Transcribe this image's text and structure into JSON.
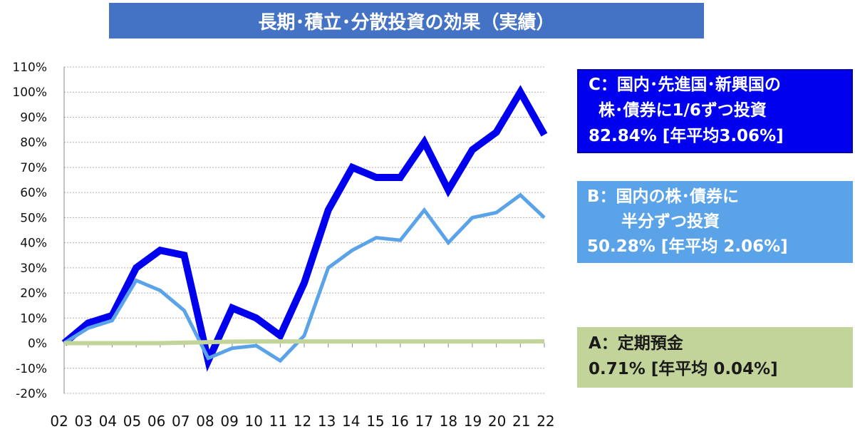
{
  "title": "長期･積立･分散投資の効果（実績）",
  "legend_boxes": {
    "c": {
      "line1": "C：国内･先進国･新興国の",
      "line2": "株･債券に1/6ずつ投資",
      "line3": "82.84%  [年平均3.06%]"
    },
    "b": {
      "line1": "B：国内の株･債券に",
      "line2": "半分ずつ投資",
      "line3": "50.28% [年平均 2.06%]"
    },
    "a": {
      "line1": "A：定期預金",
      "line2": "0.71%  [年平均 0.04%]"
    }
  },
  "colors": {
    "series_c": "#0000ee",
    "series_b": "#5ba3e8",
    "series_a": "#c3d49b",
    "title_bg": "#4472c4"
  },
  "chart_data": {
    "type": "line",
    "title": "長期･積立･分散投資の効果（実績）",
    "categories": [
      "02",
      "03",
      "04",
      "05",
      "06",
      "07",
      "08",
      "09",
      "10",
      "11",
      "12",
      "13",
      "14",
      "15",
      "16",
      "17",
      "18",
      "19",
      "20",
      "21",
      "22"
    ],
    "y_ticks": [
      "110%",
      "100%",
      "90%",
      "80%",
      "70%",
      "60%",
      "50%",
      "40%",
      "30%",
      "20%",
      "10%",
      "0%",
      "-10%",
      "-20%"
    ],
    "ylim": [
      -20,
      110
    ],
    "series": [
      {
        "name": "C",
        "values": [
          0,
          8,
          11,
          30,
          37,
          35,
          -7,
          14,
          10,
          3,
          24,
          53,
          70,
          66,
          66,
          80,
          61,
          77,
          84,
          100,
          83
        ]
      },
      {
        "name": "B",
        "values": [
          0,
          6,
          9,
          25,
          21,
          13,
          -6,
          -2,
          -1,
          -7,
          3,
          30,
          37,
          42,
          41,
          53,
          40,
          50,
          52,
          59,
          50
        ]
      },
      {
        "name": "A",
        "values": [
          0,
          0,
          0,
          0,
          0,
          0.2,
          0.4,
          0.6,
          0.7,
          0.7,
          0.7,
          0.7,
          0.7,
          0.7,
          0.7,
          0.7,
          0.7,
          0.7,
          0.7,
          0.7,
          0.71
        ]
      }
    ]
  }
}
